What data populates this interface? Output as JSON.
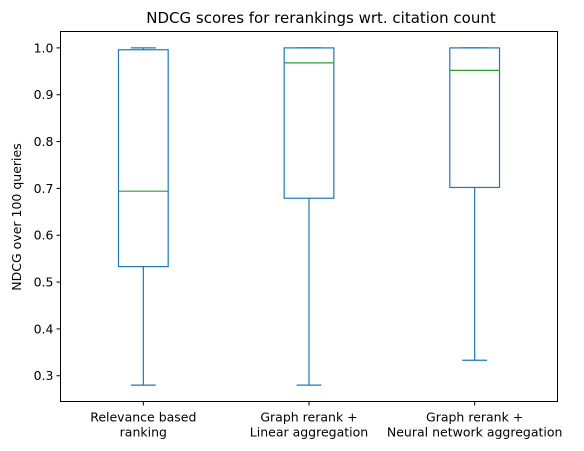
{
  "chart_data": {
    "type": "box",
    "title": "NDCG scores for rerankings wrt. citation count",
    "xlabel": "",
    "ylabel": "NDCG over 100 queries",
    "ylim": [
      0.245,
      1.035
    ],
    "yticks": [
      0.3,
      0.4,
      0.5,
      0.6,
      0.7,
      0.8,
      0.9,
      1.0
    ],
    "ytick_labels": [
      "0.3",
      "0.4",
      "0.5",
      "0.6",
      "0.7",
      "0.8",
      "0.9",
      "1.0"
    ],
    "grid": false,
    "categories": [
      [
        "Relevance based",
        "ranking"
      ],
      [
        "Graph rerank +",
        "Linear aggregation"
      ],
      [
        "Graph rerank +",
        "Neural network aggregation"
      ]
    ],
    "series": [
      {
        "min": 0.28,
        "q1": 0.533,
        "median": 0.694,
        "q3": 0.996,
        "max": 1.0
      },
      {
        "min": 0.28,
        "q1": 0.679,
        "median": 0.968,
        "q3": 1.0,
        "max": 1.0
      },
      {
        "min": 0.333,
        "q1": 0.702,
        "median": 0.952,
        "q3": 1.0,
        "max": 1.0
      }
    ],
    "colors": {
      "box": "#1f77b4",
      "median": "#2ca02c"
    }
  }
}
